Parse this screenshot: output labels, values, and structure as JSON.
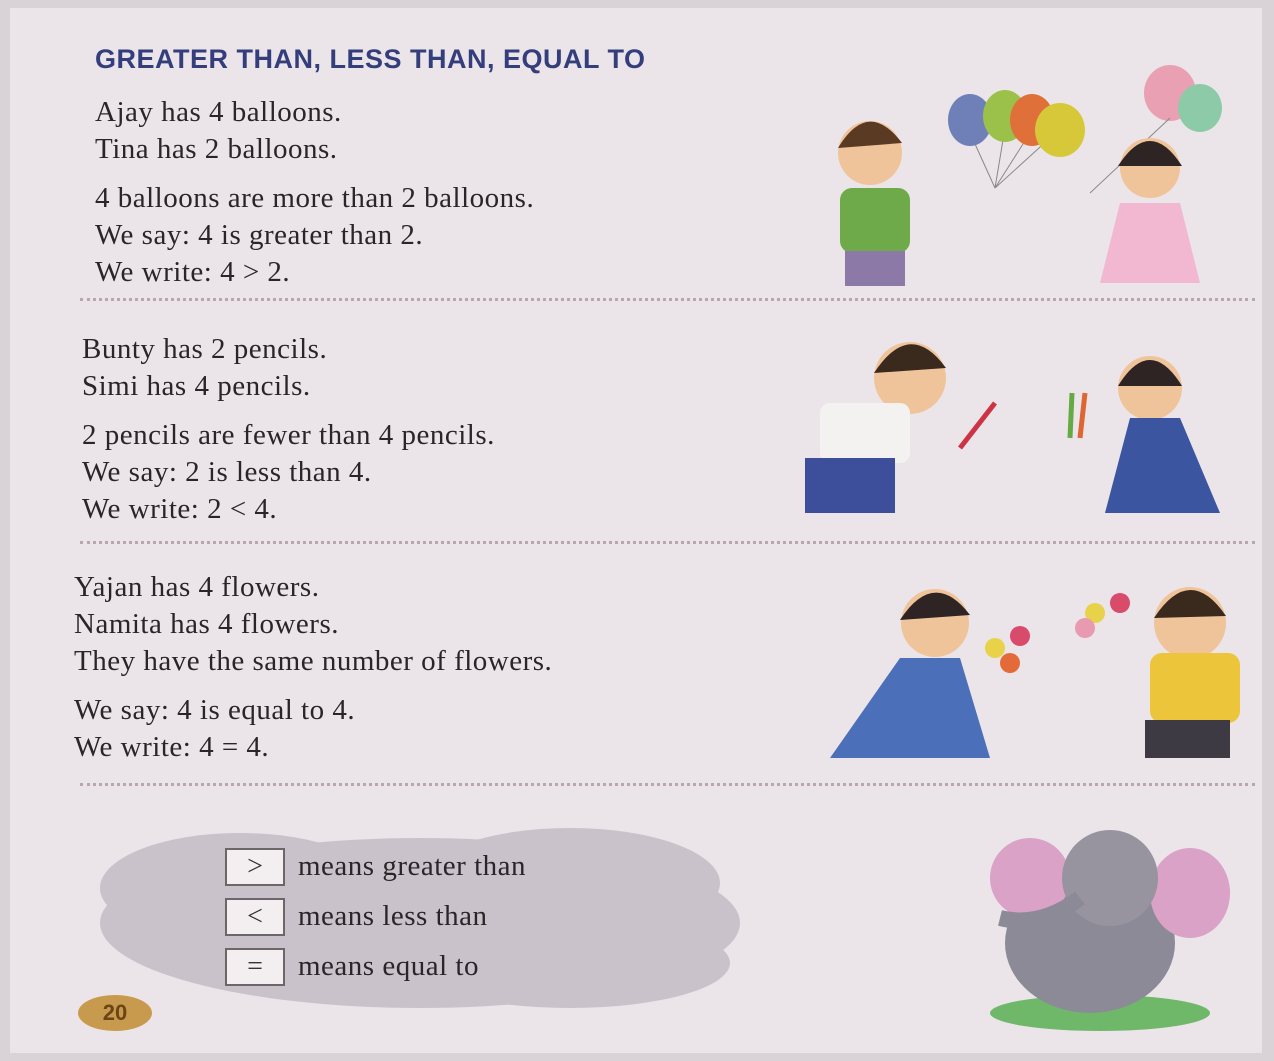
{
  "title": "GREATER THAN, LESS THAN, EQUAL TO",
  "sections": [
    {
      "lines": [
        "Ajay has 4 balloons.",
        "Tina has 2 balloons."
      ],
      "explanation": [
        "4 balloons are more than 2 balloons.",
        "We say: 4 is greater than 2.",
        "We write: 4 > 2."
      ]
    },
    {
      "lines": [
        "Bunty has 2 pencils.",
        "Simi has 4 pencils."
      ],
      "explanation": [
        "2 pencils are fewer than 4 pencils.",
        "We say: 2 is less than 4.",
        "We write: 2 < 4."
      ]
    },
    {
      "lines": [
        "Yajan has 4 flowers.",
        "Namita has 4 flowers.",
        "They have the same number of flowers."
      ],
      "explanation": [
        "We say: 4 is equal to 4.",
        "We write: 4 = 4."
      ]
    }
  ],
  "symbols": [
    {
      "symbol": ">",
      "meaning": "means greater than"
    },
    {
      "symbol": "<",
      "meaning": "means less than"
    },
    {
      "symbol": "=",
      "meaning": "means equal to"
    }
  ],
  "page_number": "20"
}
